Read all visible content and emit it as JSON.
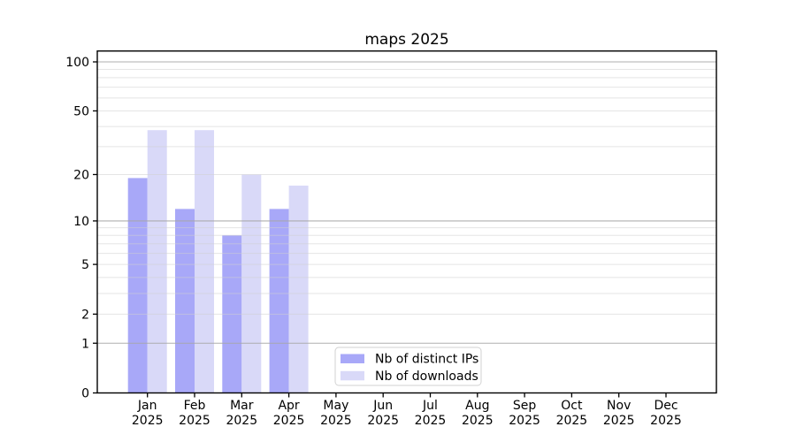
{
  "chart_data": {
    "type": "bar",
    "title": "maps 2025",
    "categories": [
      {
        "month": "Jan",
        "year": "2025"
      },
      {
        "month": "Feb",
        "year": "2025"
      },
      {
        "month": "Mar",
        "year": "2025"
      },
      {
        "month": "Apr",
        "year": "2025"
      },
      {
        "month": "May",
        "year": "2025"
      },
      {
        "month": "Jun",
        "year": "2025"
      },
      {
        "month": "Jul",
        "year": "2025"
      },
      {
        "month": "Aug",
        "year": "2025"
      },
      {
        "month": "Sep",
        "year": "2025"
      },
      {
        "month": "Oct",
        "year": "2025"
      },
      {
        "month": "Nov",
        "year": "2025"
      },
      {
        "month": "Dec",
        "year": "2025"
      }
    ],
    "series": [
      {
        "name": "Nb of distinct IPs",
        "color": "#a8a8f8",
        "values": [
          19,
          12,
          8,
          12,
          0,
          0,
          0,
          0,
          0,
          0,
          0,
          0
        ]
      },
      {
        "name": "Nb of downloads",
        "color": "#d9d9f8",
        "values": [
          38,
          38,
          20,
          17,
          0,
          0,
          0,
          0,
          0,
          0,
          0,
          0
        ]
      }
    ],
    "xlabel": "",
    "ylabel": "",
    "yscale": "log1p",
    "ylim": [
      0,
      116
    ],
    "yticks": [
      0,
      1,
      2,
      5,
      10,
      20,
      50,
      100
    ],
    "major_gridlines": [
      1,
      10,
      100
    ],
    "minor_gridlines": [
      2,
      3,
      4,
      5,
      6,
      7,
      8,
      9,
      20,
      30,
      40,
      50,
      60,
      70,
      80,
      90
    ],
    "grid": "on",
    "legend_position": "lower-center-inside"
  },
  "colors": {
    "axis": "#000000",
    "major_grid": "#a6a6a6",
    "minor_grid": "#cfcfcf",
    "background": "#ffffff",
    "legend_border": "#d2d2d2",
    "legend_fill": "#ffffff",
    "text": "#000000"
  }
}
